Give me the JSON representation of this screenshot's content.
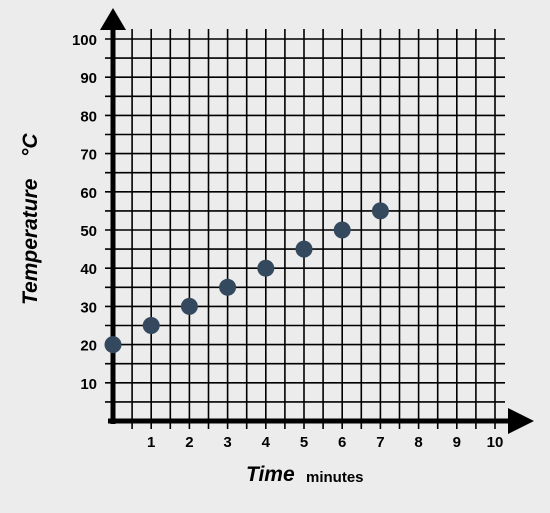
{
  "chart_data": {
    "type": "scatter",
    "title": "",
    "xlabel": "Time",
    "xunit": "minutes",
    "ylabel": "Temperature",
    "yunit": "°C",
    "xlim": [
      0,
      10
    ],
    "ylim": [
      0,
      100
    ],
    "x_ticks": [
      "1",
      "2",
      "3",
      "4",
      "5",
      "6",
      "7",
      "8",
      "9",
      "10"
    ],
    "y_ticks": [
      "10",
      "20",
      "30",
      "40",
      "50",
      "60",
      "70",
      "80",
      "90",
      "100"
    ],
    "grid": true,
    "grid_minor_step": 0.5,
    "grid_minor_step_y": 5,
    "point_color": "#34495e",
    "series": [
      {
        "x": [
          0,
          1,
          2,
          3,
          4,
          5,
          6,
          7
        ],
        "y": [
          20,
          25,
          30,
          35,
          40,
          45,
          50,
          55
        ]
      }
    ]
  }
}
